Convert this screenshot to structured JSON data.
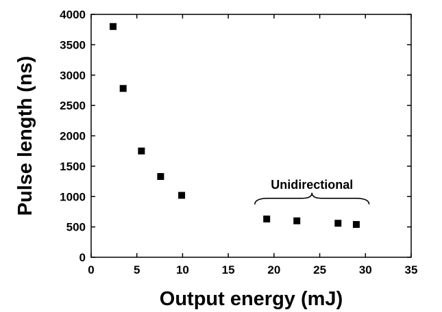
{
  "chart_data": {
    "type": "scatter",
    "xlabel": "Output energy (mJ)",
    "ylabel": "Pulse length (ns)",
    "xlim": [
      0,
      35
    ],
    "ylim": [
      0,
      4000
    ],
    "xticks": [
      0,
      5,
      10,
      15,
      20,
      25,
      30,
      35
    ],
    "yticks": [
      0,
      500,
      1000,
      1500,
      2000,
      2500,
      3000,
      3500,
      4000
    ],
    "xtick_labels": [
      "0",
      "5",
      "10",
      "15",
      "20",
      "25",
      "30",
      "35"
    ],
    "ytick_labels": [
      "0",
      "500",
      "1000",
      "1500",
      "2000",
      "2500",
      "3000",
      "3500",
      "4000"
    ],
    "grid": false,
    "marker": "square",
    "marker_color": "#000000",
    "points": [
      {
        "x": 2.4,
        "y": 3800
      },
      {
        "x": 3.5,
        "y": 2780
      },
      {
        "x": 5.5,
        "y": 1750
      },
      {
        "x": 7.6,
        "y": 1330
      },
      {
        "x": 9.9,
        "y": 1020
      },
      {
        "x": 19.2,
        "y": 630
      },
      {
        "x": 22.5,
        "y": 600
      },
      {
        "x": 27.0,
        "y": 560
      },
      {
        "x": 29.0,
        "y": 540
      }
    ],
    "annotation": {
      "text": "Unidirectional",
      "x_range": [
        17.9,
        30.4
      ],
      "y": 960
    }
  }
}
